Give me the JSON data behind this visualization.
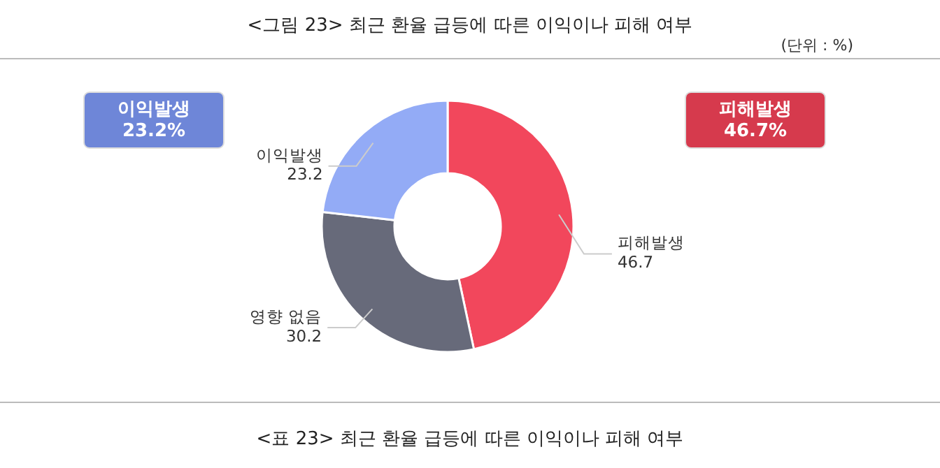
{
  "chart_data": {
    "type": "donut",
    "title": "<그림 23> 최근 환율 급등에 따른 이익이나 피해 여부",
    "subtitle": "(단위 : %)",
    "categories": [
      "피해발생",
      "영향 없음",
      "이익발생"
    ],
    "values": [
      46.7,
      30.2,
      23.2
    ],
    "colors": [
      "#f2475c",
      "#676a7a",
      "#93abf6"
    ],
    "data_labels": true,
    "annotations": [
      "이익발생\n23.2%",
      "피해발생\n46.7%",
      "<표 23> 최근 환율 급등에 따른 이익이나 피해 여부"
    ]
  }
}
